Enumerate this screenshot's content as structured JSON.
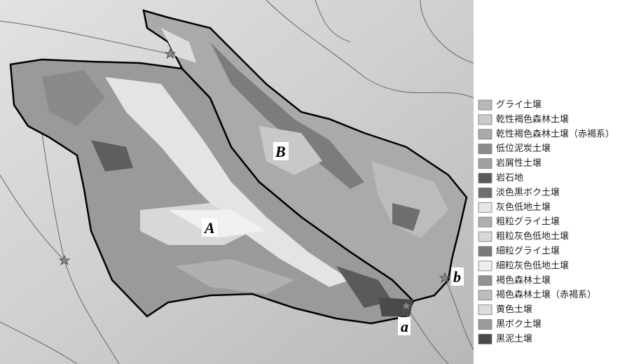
{
  "map": {
    "labels": {
      "A": "A",
      "B": "B",
      "a": "a",
      "b": "b"
    },
    "legend": {
      "items": [
        {
          "label": "グライ土壌",
          "color": "#b8b8b8"
        },
        {
          "label": "乾性褐色森林土壌",
          "color": "#cacaca"
        },
        {
          "label": "乾性褐色森林土壌（赤褐系）",
          "color": "#a9a9a9"
        },
        {
          "label": "低位泥炭土壌",
          "color": "#8a8a8a"
        },
        {
          "label": "岩屑性土壌",
          "color": "#a0a0a0"
        },
        {
          "label": "岩石地",
          "color": "#5a5a5a"
        },
        {
          "label": "淡色黒ボク土壌",
          "color": "#6e6e6e"
        },
        {
          "label": "灰色低地土壌",
          "color": "#e6e6e6"
        },
        {
          "label": "粗粒グライ土壌",
          "color": "#b0b0b0"
        },
        {
          "label": "粗粒灰色低地土壌",
          "color": "#d8d8d8"
        },
        {
          "label": "細粒グライ土壌",
          "color": "#7a7a7a"
        },
        {
          "label": "細粒灰色低地土壌",
          "color": "#ededed"
        },
        {
          "label": "褐色森林土壌",
          "color": "#929292"
        },
        {
          "label": "褐色森林土壌（赤褐系）",
          "color": "#bdbdbd"
        },
        {
          "label": "黄色土壌",
          "color": "#dddddd"
        },
        {
          "label": "黒ボク土壌",
          "color": "#9b9b9b"
        },
        {
          "label": "黒泥土壌",
          "color": "#4a4a4a"
        }
      ]
    }
  }
}
